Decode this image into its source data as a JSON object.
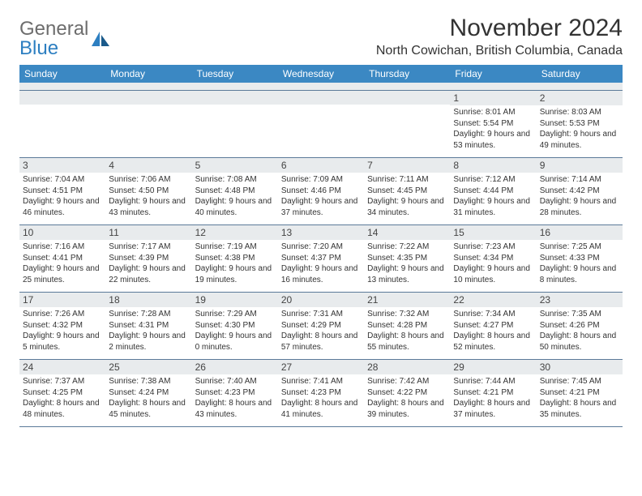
{
  "logo": {
    "text_grey": "General",
    "text_blue": "Blue"
  },
  "title": "November 2024",
  "location": "North Cowichan, British Columbia, Canada",
  "colors": {
    "header_bg": "#3b88c3",
    "header_text": "#ffffff",
    "daynum_bg": "#e8ebed",
    "border": "#5b7a99",
    "logo_blue": "#2d7fc1",
    "logo_grey": "#6d6d6d",
    "body_text": "#333333"
  },
  "day_names": [
    "Sunday",
    "Monday",
    "Tuesday",
    "Wednesday",
    "Thursday",
    "Friday",
    "Saturday"
  ],
  "weeks": [
    [
      {
        "num": "",
        "sunrise": "",
        "sunset": "",
        "daylight": ""
      },
      {
        "num": "",
        "sunrise": "",
        "sunset": "",
        "daylight": ""
      },
      {
        "num": "",
        "sunrise": "",
        "sunset": "",
        "daylight": ""
      },
      {
        "num": "",
        "sunrise": "",
        "sunset": "",
        "daylight": ""
      },
      {
        "num": "",
        "sunrise": "",
        "sunset": "",
        "daylight": ""
      },
      {
        "num": "1",
        "sunrise": "Sunrise: 8:01 AM",
        "sunset": "Sunset: 5:54 PM",
        "daylight": "Daylight: 9 hours and 53 minutes."
      },
      {
        "num": "2",
        "sunrise": "Sunrise: 8:03 AM",
        "sunset": "Sunset: 5:53 PM",
        "daylight": "Daylight: 9 hours and 49 minutes."
      }
    ],
    [
      {
        "num": "3",
        "sunrise": "Sunrise: 7:04 AM",
        "sunset": "Sunset: 4:51 PM",
        "daylight": "Daylight: 9 hours and 46 minutes."
      },
      {
        "num": "4",
        "sunrise": "Sunrise: 7:06 AM",
        "sunset": "Sunset: 4:50 PM",
        "daylight": "Daylight: 9 hours and 43 minutes."
      },
      {
        "num": "5",
        "sunrise": "Sunrise: 7:08 AM",
        "sunset": "Sunset: 4:48 PM",
        "daylight": "Daylight: 9 hours and 40 minutes."
      },
      {
        "num": "6",
        "sunrise": "Sunrise: 7:09 AM",
        "sunset": "Sunset: 4:46 PM",
        "daylight": "Daylight: 9 hours and 37 minutes."
      },
      {
        "num": "7",
        "sunrise": "Sunrise: 7:11 AM",
        "sunset": "Sunset: 4:45 PM",
        "daylight": "Daylight: 9 hours and 34 minutes."
      },
      {
        "num": "8",
        "sunrise": "Sunrise: 7:12 AM",
        "sunset": "Sunset: 4:44 PM",
        "daylight": "Daylight: 9 hours and 31 minutes."
      },
      {
        "num": "9",
        "sunrise": "Sunrise: 7:14 AM",
        "sunset": "Sunset: 4:42 PM",
        "daylight": "Daylight: 9 hours and 28 minutes."
      }
    ],
    [
      {
        "num": "10",
        "sunrise": "Sunrise: 7:16 AM",
        "sunset": "Sunset: 4:41 PM",
        "daylight": "Daylight: 9 hours and 25 minutes."
      },
      {
        "num": "11",
        "sunrise": "Sunrise: 7:17 AM",
        "sunset": "Sunset: 4:39 PM",
        "daylight": "Daylight: 9 hours and 22 minutes."
      },
      {
        "num": "12",
        "sunrise": "Sunrise: 7:19 AM",
        "sunset": "Sunset: 4:38 PM",
        "daylight": "Daylight: 9 hours and 19 minutes."
      },
      {
        "num": "13",
        "sunrise": "Sunrise: 7:20 AM",
        "sunset": "Sunset: 4:37 PM",
        "daylight": "Daylight: 9 hours and 16 minutes."
      },
      {
        "num": "14",
        "sunrise": "Sunrise: 7:22 AM",
        "sunset": "Sunset: 4:35 PM",
        "daylight": "Daylight: 9 hours and 13 minutes."
      },
      {
        "num": "15",
        "sunrise": "Sunrise: 7:23 AM",
        "sunset": "Sunset: 4:34 PM",
        "daylight": "Daylight: 9 hours and 10 minutes."
      },
      {
        "num": "16",
        "sunrise": "Sunrise: 7:25 AM",
        "sunset": "Sunset: 4:33 PM",
        "daylight": "Daylight: 9 hours and 8 minutes."
      }
    ],
    [
      {
        "num": "17",
        "sunrise": "Sunrise: 7:26 AM",
        "sunset": "Sunset: 4:32 PM",
        "daylight": "Daylight: 9 hours and 5 minutes."
      },
      {
        "num": "18",
        "sunrise": "Sunrise: 7:28 AM",
        "sunset": "Sunset: 4:31 PM",
        "daylight": "Daylight: 9 hours and 2 minutes."
      },
      {
        "num": "19",
        "sunrise": "Sunrise: 7:29 AM",
        "sunset": "Sunset: 4:30 PM",
        "daylight": "Daylight: 9 hours and 0 minutes."
      },
      {
        "num": "20",
        "sunrise": "Sunrise: 7:31 AM",
        "sunset": "Sunset: 4:29 PM",
        "daylight": "Daylight: 8 hours and 57 minutes."
      },
      {
        "num": "21",
        "sunrise": "Sunrise: 7:32 AM",
        "sunset": "Sunset: 4:28 PM",
        "daylight": "Daylight: 8 hours and 55 minutes."
      },
      {
        "num": "22",
        "sunrise": "Sunrise: 7:34 AM",
        "sunset": "Sunset: 4:27 PM",
        "daylight": "Daylight: 8 hours and 52 minutes."
      },
      {
        "num": "23",
        "sunrise": "Sunrise: 7:35 AM",
        "sunset": "Sunset: 4:26 PM",
        "daylight": "Daylight: 8 hours and 50 minutes."
      }
    ],
    [
      {
        "num": "24",
        "sunrise": "Sunrise: 7:37 AM",
        "sunset": "Sunset: 4:25 PM",
        "daylight": "Daylight: 8 hours and 48 minutes."
      },
      {
        "num": "25",
        "sunrise": "Sunrise: 7:38 AM",
        "sunset": "Sunset: 4:24 PM",
        "daylight": "Daylight: 8 hours and 45 minutes."
      },
      {
        "num": "26",
        "sunrise": "Sunrise: 7:40 AM",
        "sunset": "Sunset: 4:23 PM",
        "daylight": "Daylight: 8 hours and 43 minutes."
      },
      {
        "num": "27",
        "sunrise": "Sunrise: 7:41 AM",
        "sunset": "Sunset: 4:23 PM",
        "daylight": "Daylight: 8 hours and 41 minutes."
      },
      {
        "num": "28",
        "sunrise": "Sunrise: 7:42 AM",
        "sunset": "Sunset: 4:22 PM",
        "daylight": "Daylight: 8 hours and 39 minutes."
      },
      {
        "num": "29",
        "sunrise": "Sunrise: 7:44 AM",
        "sunset": "Sunset: 4:21 PM",
        "daylight": "Daylight: 8 hours and 37 minutes."
      },
      {
        "num": "30",
        "sunrise": "Sunrise: 7:45 AM",
        "sunset": "Sunset: 4:21 PM",
        "daylight": "Daylight: 8 hours and 35 minutes."
      }
    ]
  ]
}
